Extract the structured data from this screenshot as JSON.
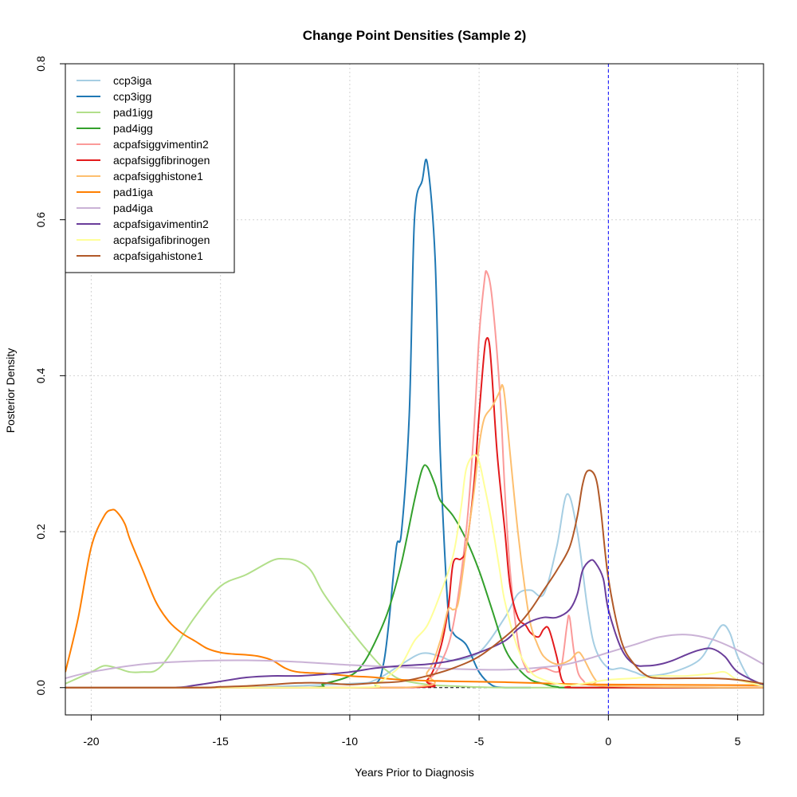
{
  "chart_data": {
    "type": "line",
    "title": "Change Point Densities (Sample 2)",
    "xlabel": "Years Prior to Diagnosis",
    "ylabel": "Posterior Density",
    "xlim": [
      -21,
      6
    ],
    "ylim": [
      -0.035,
      0.8
    ],
    "x_ticks": [
      -20,
      -15,
      -10,
      -5,
      0,
      5
    ],
    "y_ticks": [
      0.0,
      0.2,
      0.4,
      0.6,
      0.8
    ],
    "x_tick_labels": [
      "-20",
      "-15",
      "-10",
      "-5",
      "0",
      "5"
    ],
    "y_tick_labels": [
      "0.0",
      "0.2",
      "0.4",
      "0.6",
      "0.8"
    ],
    "grid": true,
    "reference_line": {
      "x": 0,
      "color": "#0000ff",
      "style": "dashed"
    },
    "legend_position": "top-left",
    "series": [
      {
        "name": "ccp3iga",
        "color": "#a6cee3",
        "x": [
          -21,
          -15,
          -10,
          -9,
          -8,
          -7.2,
          -6.5,
          -6,
          -5,
          -4,
          -3.5,
          -3,
          -2.5,
          -2,
          -1.6,
          -1.2,
          -0.8,
          -0.5,
          0,
          0.5,
          1,
          1.5,
          2.5,
          3.5,
          4,
          4.4,
          4.7,
          5,
          5.5,
          6
        ],
        "y": [
          0.0,
          0.0,
          0.005,
          0.01,
          0.03,
          0.044,
          0.04,
          0.035,
          0.045,
          0.09,
          0.12,
          0.125,
          0.12,
          0.18,
          0.248,
          0.2,
          0.1,
          0.05,
          0.025,
          0.025,
          0.02,
          0.015,
          0.02,
          0.035,
          0.06,
          0.08,
          0.07,
          0.04,
          0.01,
          0.005
        ]
      },
      {
        "name": "ccp3igg",
        "color": "#1f78b4",
        "x": [
          -21,
          -10,
          -9,
          -8.7,
          -8.5,
          -8.2,
          -8,
          -7.7,
          -7.5,
          -7.2,
          -7,
          -6.7,
          -6.5,
          -6.2,
          -6,
          -5.5,
          -5,
          -4.5,
          -4,
          -3
        ],
        "y": [
          0.0,
          0.0,
          0.005,
          0.03,
          0.08,
          0.18,
          0.2,
          0.35,
          0.6,
          0.65,
          0.672,
          0.55,
          0.3,
          0.1,
          0.07,
          0.055,
          0.02,
          0.003,
          0.0,
          0.0
        ]
      },
      {
        "name": "pad1igg",
        "color": "#b2df8a",
        "x": [
          -21,
          -20,
          -19.5,
          -19,
          -18.5,
          -18,
          -17.5,
          -17,
          -16,
          -15,
          -14,
          -13,
          -12.5,
          -12,
          -11.5,
          -11,
          -10,
          -9,
          -8.5,
          -8,
          -7,
          -6,
          -4,
          0,
          6
        ],
        "y": [
          0.005,
          0.02,
          0.028,
          0.025,
          0.02,
          0.02,
          0.022,
          0.04,
          0.09,
          0.13,
          0.145,
          0.163,
          0.165,
          0.162,
          0.15,
          0.12,
          0.075,
          0.035,
          0.02,
          0.01,
          0.004,
          0.002,
          0.0,
          0.0,
          0.0
        ]
      },
      {
        "name": "pad4igg",
        "color": "#33a02c",
        "x": [
          -21,
          -12,
          -11,
          -10,
          -9.5,
          -9,
          -8.5,
          -8,
          -7.5,
          -7.2,
          -7,
          -6.7,
          -6.5,
          -6,
          -5.5,
          -5,
          -4.5,
          -4,
          -3.5,
          -3,
          -2.5,
          -2,
          -1,
          6
        ],
        "y": [
          0.0,
          0.0,
          0.005,
          0.015,
          0.03,
          0.06,
          0.1,
          0.16,
          0.24,
          0.28,
          0.283,
          0.26,
          0.24,
          0.22,
          0.19,
          0.15,
          0.1,
          0.05,
          0.025,
          0.01,
          0.005,
          0.001,
          0.0,
          0.0
        ]
      },
      {
        "name": "acpafsiggvimentin2",
        "color": "#fb9a99",
        "x": [
          -21,
          -8,
          -7,
          -6.5,
          -6,
          -5.5,
          -5.2,
          -5,
          -4.8,
          -4.7,
          -4.5,
          -4.2,
          -4,
          -3.8,
          -3.5,
          -3.2,
          -3,
          -2.5,
          -2,
          -1.8,
          -1.6,
          -1.5,
          -1.3,
          -1,
          0,
          6
        ],
        "y": [
          0.0,
          0.0,
          0.01,
          0.03,
          0.08,
          0.2,
          0.33,
          0.45,
          0.52,
          0.533,
          0.5,
          0.38,
          0.25,
          0.15,
          0.06,
          0.025,
          0.02,
          0.025,
          0.02,
          0.03,
          0.08,
          0.09,
          0.04,
          0.01,
          0.002,
          0.0
        ]
      },
      {
        "name": "acpafsiggfibrinogen",
        "color": "#e31a1c",
        "x": [
          -21,
          -8,
          -7,
          -6.5,
          -6.2,
          -6,
          -5.7,
          -5.5,
          -5.2,
          -5,
          -4.8,
          -4.7,
          -4.6,
          -4.5,
          -4.3,
          -4,
          -3.8,
          -3.5,
          -3.2,
          -3,
          -2.7,
          -2.5,
          -2.3,
          -2,
          -1.8,
          -1.5,
          -1,
          6
        ],
        "y": [
          0.0,
          0.0,
          0.01,
          0.05,
          0.1,
          0.16,
          0.165,
          0.18,
          0.26,
          0.35,
          0.43,
          0.448,
          0.44,
          0.4,
          0.3,
          0.2,
          0.13,
          0.09,
          0.08,
          0.07,
          0.065,
          0.075,
          0.075,
          0.04,
          0.01,
          0.002,
          0.0,
          0.0
        ]
      },
      {
        "name": "acpafsigghistone1",
        "color": "#fdbf6f",
        "x": [
          -21,
          -8,
          -7,
          -6.5,
          -6.2,
          -6,
          -5.8,
          -5.5,
          -5.2,
          -5,
          -4.8,
          -4.5,
          -4.2,
          -4.1,
          -4,
          -3.8,
          -3.5,
          -3.2,
          -3,
          -2.8,
          -2.5,
          -2,
          -1.5,
          -1.2,
          -1,
          -0.5,
          0,
          6
        ],
        "y": [
          0.0,
          0.0,
          0.02,
          0.06,
          0.1,
          0.1,
          0.11,
          0.18,
          0.25,
          0.31,
          0.345,
          0.36,
          0.38,
          0.388,
          0.37,
          0.3,
          0.2,
          0.12,
          0.08,
          0.06,
          0.04,
          0.03,
          0.035,
          0.045,
          0.04,
          0.01,
          0.002,
          0.0
        ]
      },
      {
        "name": "pad1iga",
        "color": "#ff7f00",
        "x": [
          -21,
          -20.5,
          -20,
          -19.5,
          -19.2,
          -19,
          -18.7,
          -18.5,
          -18,
          -17.5,
          -17,
          -16.5,
          -16,
          -15.5,
          -15,
          -14.5,
          -14,
          -13.5,
          -13,
          -12.5,
          -12,
          -11,
          -10,
          -9,
          -8,
          -6,
          -4,
          -2,
          0,
          6
        ],
        "y": [
          0.02,
          0.09,
          0.18,
          0.22,
          0.228,
          0.225,
          0.21,
          0.19,
          0.15,
          0.11,
          0.085,
          0.07,
          0.06,
          0.05,
          0.045,
          0.043,
          0.042,
          0.04,
          0.035,
          0.025,
          0.02,
          0.018,
          0.015,
          0.013,
          0.01,
          0.008,
          0.007,
          0.005,
          0.004,
          0.003
        ]
      },
      {
        "name": "pad4iga",
        "color": "#cab2d6",
        "x": [
          -21,
          -20,
          -18,
          -16,
          -14,
          -12,
          -10,
          -8,
          -6,
          -4,
          -2,
          -1,
          0,
          1,
          2,
          3,
          4,
          5,
          6
        ],
        "y": [
          0.012,
          0.02,
          0.03,
          0.034,
          0.035,
          0.033,
          0.029,
          0.026,
          0.024,
          0.023,
          0.028,
          0.035,
          0.045,
          0.055,
          0.065,
          0.068,
          0.062,
          0.048,
          0.03
        ]
      },
      {
        "name": "acpafsigavimentin2",
        "color": "#6a3d9a",
        "x": [
          -21,
          -17,
          -16,
          -15,
          -14,
          -13,
          -12,
          -11,
          -10,
          -9,
          -8,
          -7,
          -6,
          -5,
          -4,
          -3.5,
          -3,
          -2.5,
          -2,
          -1.5,
          -1.2,
          -1,
          -0.7,
          -0.5,
          -0.2,
          0,
          0.5,
          1,
          1.5,
          2,
          2.5,
          3,
          3.5,
          4,
          4.5,
          5,
          6
        ],
        "y": [
          0.0,
          0.0,
          0.003,
          0.008,
          0.013,
          0.015,
          0.015,
          0.017,
          0.02,
          0.025,
          0.028,
          0.03,
          0.035,
          0.045,
          0.06,
          0.075,
          0.085,
          0.09,
          0.09,
          0.1,
          0.12,
          0.15,
          0.163,
          0.16,
          0.14,
          0.1,
          0.05,
          0.03,
          0.028,
          0.03,
          0.035,
          0.042,
          0.048,
          0.05,
          0.04,
          0.02,
          0.003
        ]
      },
      {
        "name": "acpafsigafibrinogen",
        "color": "#ffff99",
        "x": [
          -21,
          -10,
          -9,
          -8.5,
          -8,
          -7.5,
          -7,
          -6.5,
          -6,
          -5.7,
          -5.5,
          -5.2,
          -5,
          -4.8,
          -4.5,
          -4.2,
          -4,
          -3.5,
          -3,
          -2.5,
          -2,
          -1.5,
          -1,
          0,
          1,
          2,
          3,
          4,
          4.5,
          5,
          6
        ],
        "y": [
          0.0,
          0.0,
          0.005,
          0.015,
          0.03,
          0.06,
          0.08,
          0.12,
          0.17,
          0.23,
          0.28,
          0.298,
          0.29,
          0.26,
          0.21,
          0.15,
          0.11,
          0.05,
          0.02,
          0.01,
          0.005,
          0.003,
          0.005,
          0.01,
          0.012,
          0.015,
          0.015,
          0.018,
          0.02,
          0.01,
          0.002
        ]
      },
      {
        "name": "acpafsigahistone1",
        "color": "#b15928",
        "x": [
          -21,
          -16,
          -15,
          -14,
          -13,
          -12,
          -11,
          -10,
          -9,
          -8,
          -7,
          -6,
          -5,
          -4,
          -3.5,
          -3,
          -2.5,
          -2,
          -1.5,
          -1.2,
          -1,
          -0.8,
          -0.5,
          -0.3,
          0,
          0.5,
          1,
          1.5,
          2,
          3,
          4,
          5,
          6
        ],
        "y": [
          0.0,
          0.0,
          0.001,
          0.002,
          0.004,
          0.006,
          0.006,
          0.004,
          0.006,
          0.008,
          0.015,
          0.025,
          0.04,
          0.065,
          0.08,
          0.1,
          0.125,
          0.15,
          0.18,
          0.22,
          0.26,
          0.278,
          0.27,
          0.23,
          0.14,
          0.06,
          0.03,
          0.015,
          0.012,
          0.012,
          0.012,
          0.01,
          0.005
        ]
      }
    ]
  }
}
